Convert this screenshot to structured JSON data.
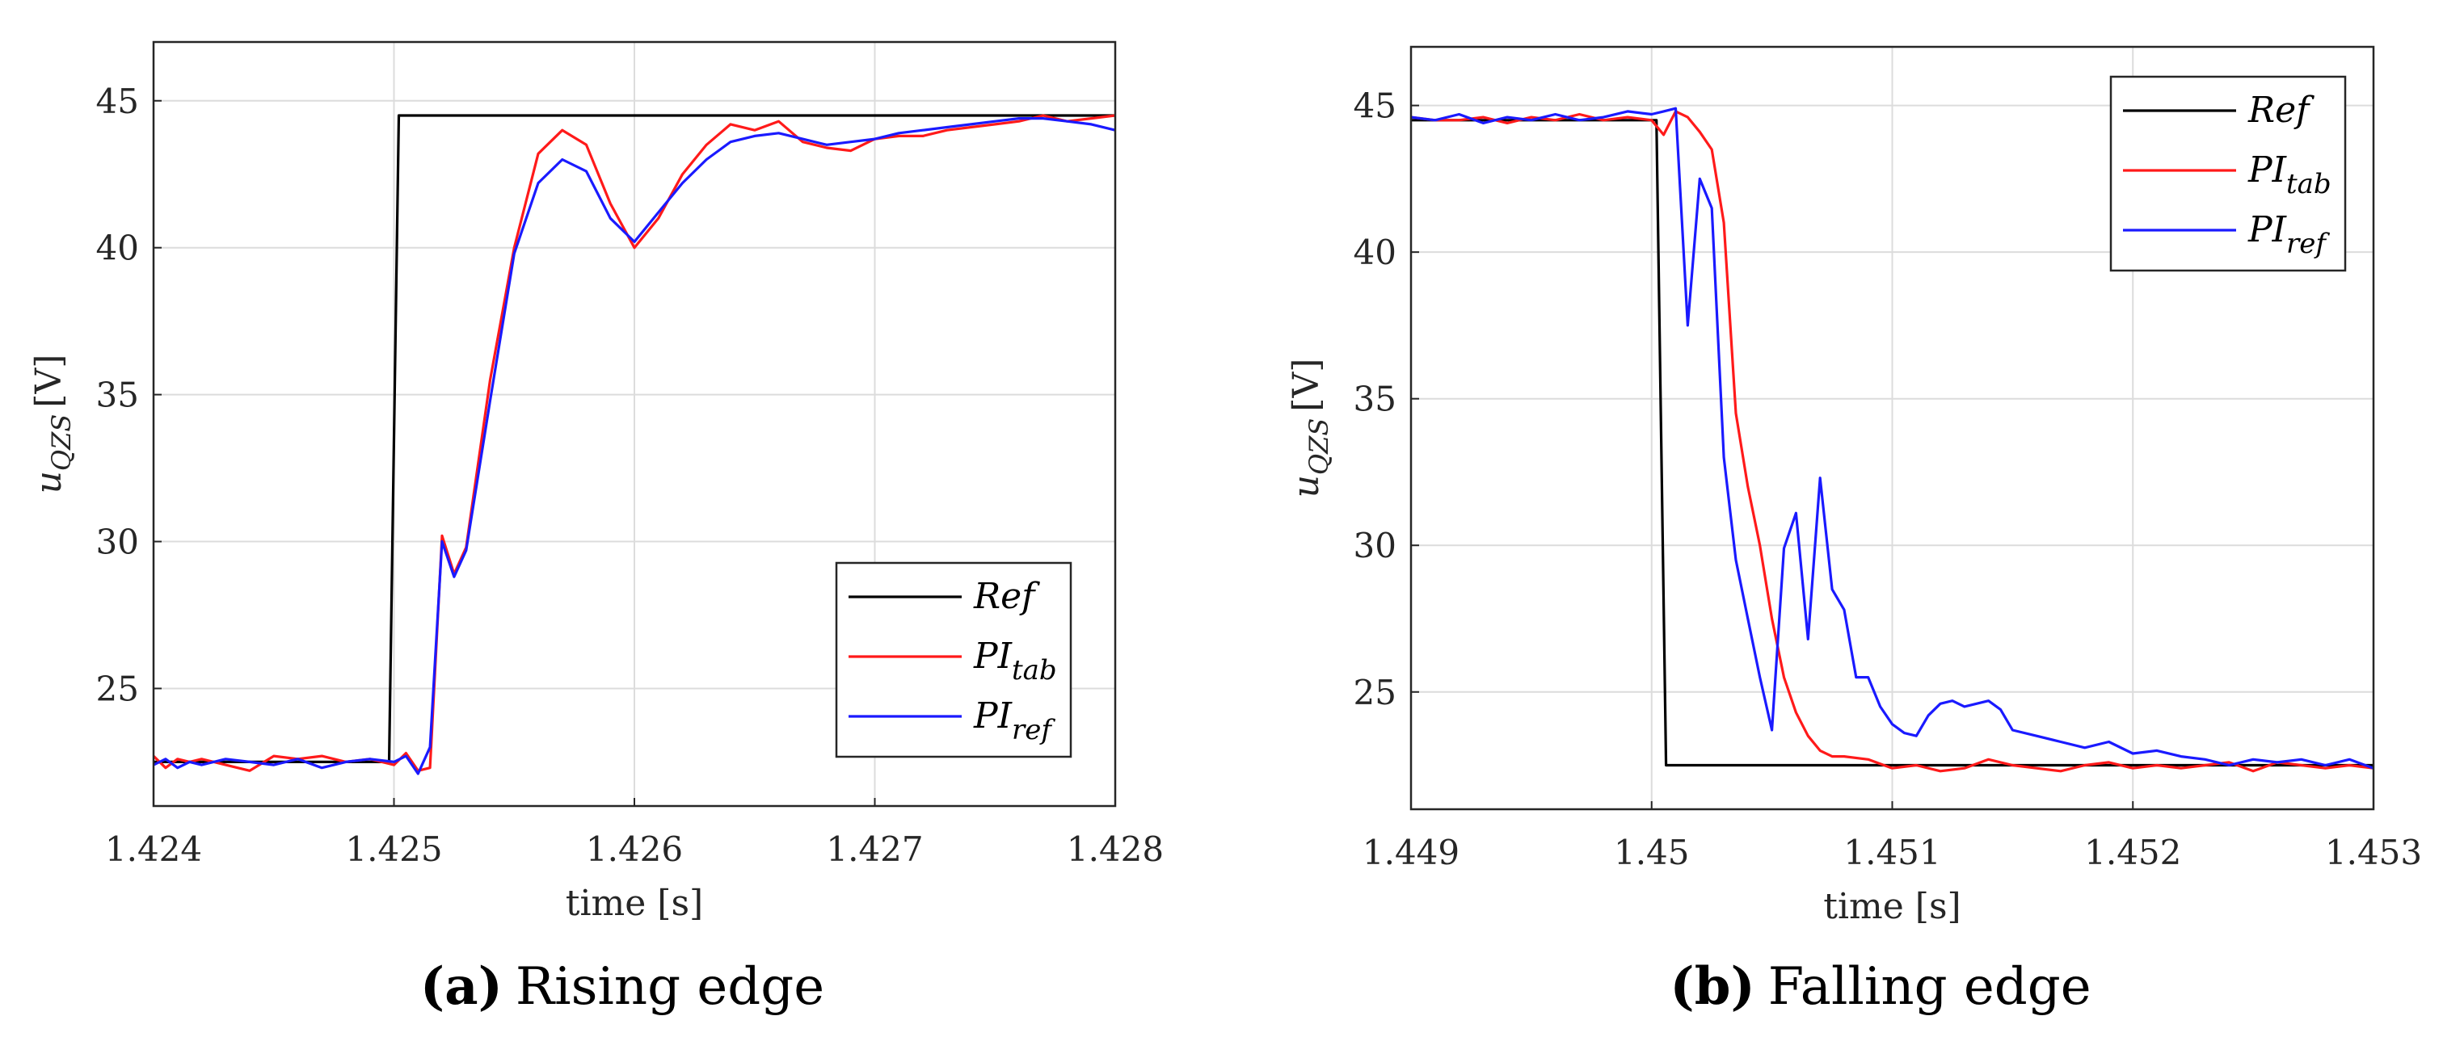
{
  "chart_data": [
    {
      "type": "line",
      "caption_letter": "(a)",
      "caption_text": "Rising edge",
      "xlabel": "time [s]",
      "ylabel": "u",
      "ylabel_subscript": "QZS",
      "ylabel_unit": "[V]",
      "xlim": [
        1.424,
        1.428
      ],
      "ylim": [
        21,
        47
      ],
      "xticks": [
        1.424,
        1.425,
        1.426,
        1.427,
        1.428
      ],
      "xtick_labels": [
        "1.424",
        "1.425",
        "1.426",
        "1.427",
        "1.428"
      ],
      "yticks": [
        25,
        30,
        35,
        40,
        45
      ],
      "ytick_labels": [
        "25",
        "30",
        "35",
        "40",
        "45"
      ],
      "grid": true,
      "legend_position": "bottom-right",
      "series": [
        {
          "name": "Ref",
          "label_main": "Ref",
          "label_sub": "",
          "color": "#000000",
          "x": [
            1.424,
            1.42498,
            1.42502,
            1.428
          ],
          "y": [
            22.5,
            22.5,
            44.5,
            44.5
          ]
        },
        {
          "name": "PI_tab",
          "label_main": "PI",
          "label_sub": "tab",
          "color": "#ff1a1a",
          "x": [
            1.424,
            1.42405,
            1.4241,
            1.42415,
            1.4242,
            1.4243,
            1.4244,
            1.4245,
            1.4246,
            1.4247,
            1.4248,
            1.4249,
            1.425,
            1.42505,
            1.4251,
            1.42515,
            1.4252,
            1.42525,
            1.4253,
            1.4254,
            1.4255,
            1.4256,
            1.4257,
            1.4258,
            1.4259,
            1.426,
            1.4261,
            1.4262,
            1.4263,
            1.4264,
            1.4265,
            1.4266,
            1.4267,
            1.4268,
            1.4269,
            1.427,
            1.4271,
            1.4272,
            1.4273,
            1.4274,
            1.4275,
            1.4276,
            1.4277,
            1.4278,
            1.4279,
            1.428
          ],
          "y": [
            22.7,
            22.3,
            22.6,
            22.5,
            22.6,
            22.4,
            22.2,
            22.7,
            22.6,
            22.7,
            22.5,
            22.6,
            22.4,
            22.8,
            22.2,
            22.3,
            30.2,
            28.9,
            29.8,
            35.5,
            40.0,
            43.2,
            44.0,
            43.5,
            41.5,
            40.0,
            41.0,
            42.5,
            43.5,
            44.2,
            44.0,
            44.3,
            43.6,
            43.4,
            43.3,
            43.7,
            43.8,
            43.8,
            44.0,
            44.1,
            44.2,
            44.3,
            44.5,
            44.3,
            44.4,
            44.5
          ]
        },
        {
          "name": "PI_ref",
          "label_main": "PI",
          "label_sub": "ref",
          "color": "#1a1aff",
          "x": [
            1.424,
            1.42405,
            1.4241,
            1.42415,
            1.4242,
            1.4243,
            1.4244,
            1.4245,
            1.4246,
            1.4247,
            1.4248,
            1.4249,
            1.425,
            1.42505,
            1.4251,
            1.42515,
            1.4252,
            1.42525,
            1.4253,
            1.4254,
            1.4255,
            1.4256,
            1.4257,
            1.4258,
            1.4259,
            1.426,
            1.4261,
            1.4262,
            1.4263,
            1.4264,
            1.4265,
            1.4266,
            1.4267,
            1.4268,
            1.4269,
            1.427,
            1.4271,
            1.4272,
            1.4273,
            1.4274,
            1.4275,
            1.4276,
            1.4277,
            1.4278,
            1.4279,
            1.428
          ],
          "y": [
            22.4,
            22.6,
            22.3,
            22.5,
            22.4,
            22.6,
            22.5,
            22.4,
            22.6,
            22.3,
            22.5,
            22.6,
            22.5,
            22.7,
            22.1,
            23.0,
            30.0,
            28.8,
            29.7,
            34.8,
            39.8,
            42.2,
            43.0,
            42.6,
            41.0,
            40.2,
            41.2,
            42.2,
            43.0,
            43.6,
            43.8,
            43.9,
            43.7,
            43.5,
            43.6,
            43.7,
            43.9,
            44.0,
            44.1,
            44.2,
            44.3,
            44.4,
            44.4,
            44.3,
            44.2,
            44.0
          ]
        }
      ]
    },
    {
      "type": "line",
      "caption_letter": "(b)",
      "caption_text": "Falling edge",
      "xlabel": "time [s]",
      "ylabel": "u",
      "ylabel_subscript": "QZS",
      "ylabel_unit": "[V]",
      "xlim": [
        1.449,
        1.453
      ],
      "ylim": [
        21,
        47
      ],
      "xticks": [
        1.449,
        1.45,
        1.451,
        1.452,
        1.453
      ],
      "xtick_labels": [
        "1.449",
        "1.45",
        "1.451",
        "1.452",
        "1.453"
      ],
      "yticks": [
        25,
        30,
        35,
        40,
        45
      ],
      "ytick_labels": [
        "25",
        "30",
        "35",
        "40",
        "45"
      ],
      "grid": true,
      "legend_position": "top-right",
      "series": [
        {
          "name": "Ref",
          "label_main": "Ref",
          "label_sub": "",
          "color": "#000000",
          "x": [
            1.449,
            1.45002,
            1.45006,
            1.453
          ],
          "y": [
            44.5,
            44.5,
            22.5,
            22.5
          ]
        },
        {
          "name": "PI_tab",
          "label_main": "PI",
          "label_sub": "tab",
          "color": "#ff1a1a",
          "x": [
            1.449,
            1.4491,
            1.4492,
            1.4493,
            1.4494,
            1.4495,
            1.4496,
            1.4497,
            1.4498,
            1.4499,
            1.45,
            1.45005,
            1.4501,
            1.45015,
            1.4502,
            1.45025,
            1.4503,
            1.45035,
            1.4504,
            1.45045,
            1.4505,
            1.45055,
            1.4506,
            1.45065,
            1.4507,
            1.45075,
            1.4508,
            1.4509,
            1.451,
            1.4511,
            1.4512,
            1.4513,
            1.4514,
            1.4515,
            1.4516,
            1.4517,
            1.4518,
            1.4519,
            1.452,
            1.4521,
            1.4522,
            1.4523,
            1.4524,
            1.4525,
            1.4526,
            1.4527,
            1.4528,
            1.4529,
            1.453
          ],
          "y": [
            44.6,
            44.5,
            44.5,
            44.6,
            44.4,
            44.6,
            44.5,
            44.7,
            44.5,
            44.6,
            44.5,
            44.0,
            44.8,
            44.6,
            44.1,
            43.5,
            41.0,
            34.5,
            32.0,
            30.0,
            27.5,
            25.5,
            24.3,
            23.5,
            23.0,
            22.8,
            22.8,
            22.7,
            22.4,
            22.5,
            22.3,
            22.4,
            22.7,
            22.5,
            22.4,
            22.3,
            22.5,
            22.6,
            22.4,
            22.5,
            22.4,
            22.5,
            22.6,
            22.3,
            22.6,
            22.5,
            22.4,
            22.5,
            22.4
          ]
        },
        {
          "name": "PI_ref",
          "label_main": "PI",
          "label_sub": "ref",
          "color": "#1a1aff",
          "x": [
            1.449,
            1.4491,
            1.4492,
            1.4493,
            1.4494,
            1.4495,
            1.4496,
            1.4497,
            1.4498,
            1.4499,
            1.45,
            1.45005,
            1.4501,
            1.45015,
            1.4502,
            1.45025,
            1.4503,
            1.45035,
            1.4504,
            1.45045,
            1.4505,
            1.45055,
            1.4506,
            1.45065,
            1.4507,
            1.45075,
            1.4508,
            1.45085,
            1.4509,
            1.45095,
            1.451,
            1.45105,
            1.4511,
            1.45115,
            1.4512,
            1.45125,
            1.4513,
            1.45135,
            1.4514,
            1.45145,
            1.4515,
            1.4516,
            1.4517,
            1.4518,
            1.4519,
            1.452,
            1.4521,
            1.4522,
            1.4523,
            1.4524,
            1.4525,
            1.4526,
            1.4527,
            1.4528,
            1.4529,
            1.453
          ],
          "y": [
            44.6,
            44.5,
            44.7,
            44.4,
            44.6,
            44.5,
            44.7,
            44.5,
            44.6,
            44.8,
            44.7,
            44.8,
            44.9,
            37.5,
            42.5,
            41.5,
            33.0,
            29.5,
            27.5,
            25.5,
            23.7,
            29.9,
            31.1,
            26.8,
            32.3,
            28.5,
            27.8,
            25.5,
            25.5,
            24.5,
            23.9,
            23.6,
            23.5,
            24.2,
            24.6,
            24.7,
            24.5,
            24.6,
            24.7,
            24.4,
            23.7,
            23.5,
            23.3,
            23.1,
            23.3,
            22.9,
            23.0,
            22.8,
            22.7,
            22.5,
            22.7,
            22.6,
            22.7,
            22.5,
            22.7,
            22.4
          ]
        }
      ]
    }
  ]
}
